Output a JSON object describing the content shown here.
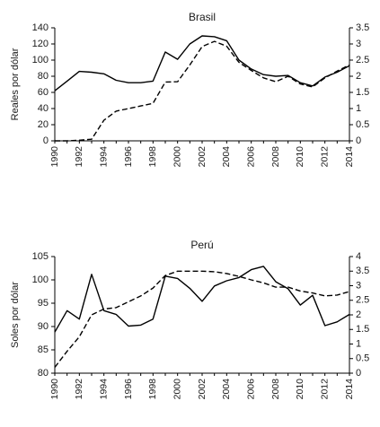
{
  "chart_data": [
    {
      "type": "line",
      "title": "Brasil",
      "ylabel": "Reales por dólar",
      "xlabel": "",
      "xlim": [
        1990,
        2014
      ],
      "ylim": [
        0,
        140
      ],
      "y2lim": [
        0,
        3.5
      ],
      "x_ticks": [
        "1990",
        "1992",
        "1994",
        "1996",
        "1998",
        "2000",
        "2002",
        "2004",
        "2006",
        "2008",
        "2010",
        "2012",
        "2014"
      ],
      "y_ticks": [
        "0",
        "20",
        "40",
        "60",
        "80",
        "100",
        "120",
        "140"
      ],
      "y2_ticks": [
        "0",
        "0.5",
        "1",
        "1.5",
        "2",
        "2.5",
        "3",
        "3.5"
      ],
      "x": [
        1990,
        1991,
        1992,
        1993,
        1994,
        1995,
        1996,
        1997,
        1998,
        1999,
        2000,
        2001,
        2002,
        2003,
        2004,
        2005,
        2006,
        2007,
        2008,
        2009,
        2010,
        2011,
        2012,
        2013,
        2014
      ],
      "grid": false,
      "series": [
        {
          "style": "solid",
          "axis": "left",
          "values": [
            62,
            74,
            86,
            85,
            83,
            75,
            72,
            72,
            74,
            110,
            101,
            120,
            130,
            129,
            124,
            100,
            89,
            82,
            80,
            81,
            72,
            68,
            79,
            85,
            93
          ]
        },
        {
          "style": "dashed",
          "axis": "right",
          "values": [
            0.0,
            0.0,
            0.02,
            0.05,
            0.64,
            0.92,
            1.0,
            1.08,
            1.16,
            1.82,
            1.83,
            2.35,
            2.92,
            3.08,
            2.93,
            2.43,
            2.18,
            1.95,
            1.83,
            2.0,
            1.76,
            1.67,
            1.95,
            2.16,
            2.35
          ]
        }
      ]
    },
    {
      "type": "line",
      "title": "Perú",
      "ylabel": "Soles por dólar",
      "xlabel": "",
      "xlim": [
        1990,
        2014
      ],
      "ylim": [
        80,
        105
      ],
      "y2lim": [
        0,
        4
      ],
      "x_ticks": [
        "1990",
        "1992",
        "1994",
        "1996",
        "1998",
        "2000",
        "2002",
        "2004",
        "2006",
        "2008",
        "2010",
        "2012",
        "2014"
      ],
      "y_ticks": [
        "80",
        "85",
        "90",
        "95",
        "100",
        "105"
      ],
      "y2_ticks": [
        "0",
        "0.5",
        "1",
        "1.5",
        "2",
        "2.5",
        "3",
        "3.5",
        "4"
      ],
      "x": [
        1990,
        1991,
        1992,
        1993,
        1994,
        1995,
        1996,
        1997,
        1998,
        1999,
        2000,
        2001,
        2002,
        2003,
        2004,
        2005,
        2006,
        2007,
        2008,
        2009,
        2010,
        2011,
        2012,
        2013,
        2014
      ],
      "grid": false,
      "series": [
        {
          "style": "solid",
          "axis": "left",
          "values": [
            88.8,
            93.4,
            91.6,
            101.2,
            93.4,
            92.6,
            90.1,
            90.3,
            91.6,
            100.8,
            100.3,
            98.2,
            95.4,
            98.7,
            99.8,
            100.5,
            102.2,
            102.9,
            99.6,
            98.1,
            94.6,
            96.7,
            90.2,
            91.0,
            92.6
          ]
        },
        {
          "style": "dashed",
          "axis": "right",
          "values": [
            0.2,
            0.75,
            1.25,
            2.0,
            2.2,
            2.25,
            2.45,
            2.65,
            2.92,
            3.35,
            3.5,
            3.5,
            3.5,
            3.48,
            3.42,
            3.32,
            3.2,
            3.1,
            2.95,
            2.95,
            2.82,
            2.75,
            2.65,
            2.68,
            2.8
          ]
        }
      ]
    }
  ]
}
